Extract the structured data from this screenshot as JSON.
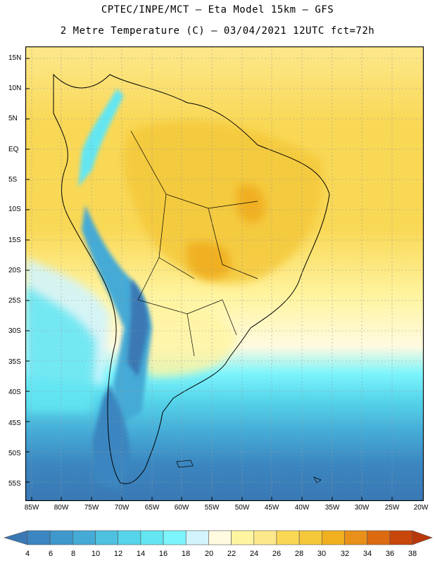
{
  "header": {
    "line1": "CPTEC/INPE/MCT –  Eta Model 15km – GFS",
    "line2": "2 Metre Temperature (C) – 03/04/2021 12UTC fct=72h"
  },
  "axes": {
    "lat_labels": [
      "15N",
      "10N",
      "5N",
      "EQ",
      "5S",
      "10S",
      "15S",
      "20S",
      "25S",
      "30S",
      "35S",
      "40S",
      "45S",
      "50S",
      "55S"
    ],
    "lon_labels": [
      "85W",
      "80W",
      "75W",
      "70W",
      "65W",
      "60W",
      "55W",
      "50W",
      "45W",
      "40W",
      "35W",
      "30W",
      "25W",
      "20W"
    ]
  },
  "colorbar": {
    "ticks": [
      "4",
      "6",
      "8",
      "10",
      "12",
      "14",
      "16",
      "18",
      "20",
      "22",
      "24",
      "26",
      "28",
      "30",
      "32",
      "34",
      "36",
      "38"
    ],
    "colors": [
      "#3a78b4",
      "#3b86c0",
      "#3f98cc",
      "#45aad6",
      "#4ec0e0",
      "#55d4ea",
      "#63e6f2",
      "#7cf4fc",
      "#d2f4fc",
      "#fffae0",
      "#fff4a0",
      "#fde88c",
      "#f9d856",
      "#f4c83a",
      "#f0b020",
      "#e8901a",
      "#dc6a10",
      "#c8460a",
      "#b8380a"
    ],
    "under_color": "#3a78b4",
    "over_color": "#b8380a"
  }
}
